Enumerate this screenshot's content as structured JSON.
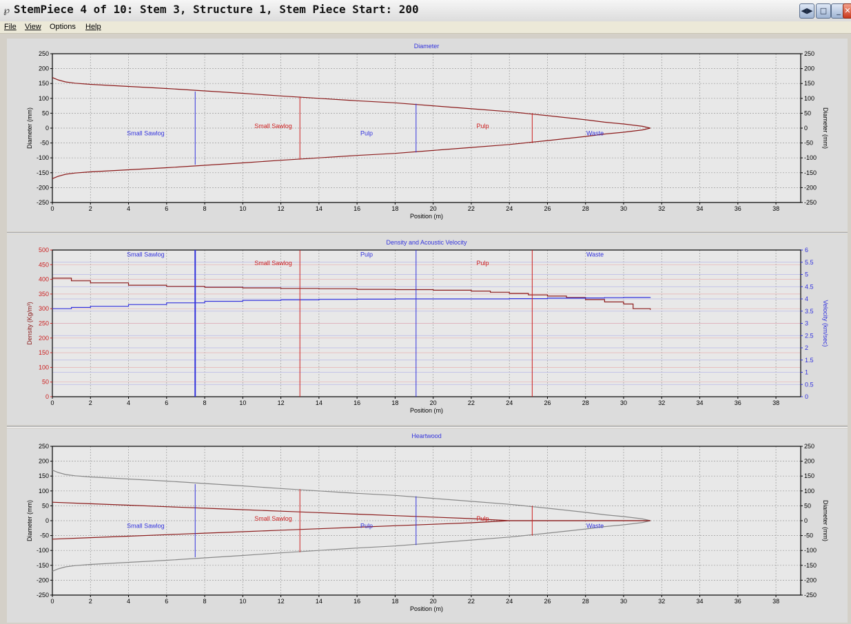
{
  "window": {
    "icon": "tree-icon",
    "title": "StemPiece 4 of 10: Stem 3, Structure 1, Stem Piece Start: 200",
    "buttons": [
      "prev-next-icon",
      "restore-icon",
      "minimize-icon",
      "maximize-icon",
      "close-icon"
    ]
  },
  "menu": {
    "file": "File",
    "view": "View",
    "options": "Options",
    "help": "Help"
  },
  "colors": {
    "red": "#cc2020",
    "dark_red": "#8b1a1a",
    "blue": "#3333dd",
    "gray_outline": "#888888",
    "panel_bg": "#dcdcdc",
    "plot_bg": "#e8e8e8"
  },
  "chart_data": [
    {
      "type": "line",
      "title": "Diameter",
      "xlabel": "Position (m)",
      "ylabel": "Diameter (mm)",
      "ylabel_right": "Diameter (mm)",
      "xlim": [
        0,
        39.3
      ],
      "ylim": [
        -250,
        250
      ],
      "x_ticks": [
        0,
        2,
        4,
        6,
        8,
        10,
        12,
        14,
        16,
        18,
        20,
        22,
        24,
        26,
        28,
        30,
        32,
        34,
        36,
        38
      ],
      "y_ticks": [
        250,
        200,
        150,
        100,
        50,
        0,
        -50,
        -100,
        -150,
        -200,
        -250
      ],
      "grid": true,
      "series": [
        {
          "color": "#8b1a1a",
          "x": [
            0,
            0.3,
            0.7,
            1.2,
            2,
            4,
            6,
            8,
            10,
            12,
            14,
            16,
            18,
            20,
            22,
            24,
            26,
            28,
            29,
            30,
            31,
            31.4
          ],
          "y": [
            170,
            162,
            155,
            151,
            147,
            140,
            133,
            125,
            117,
            108,
            100,
            92,
            85,
            75,
            65,
            55,
            42,
            28,
            20,
            14,
            6,
            0
          ],
          "mirrored": true
        }
      ],
      "cut_lines": [
        {
          "x": 7.5,
          "color": "blue",
          "height": 123
        },
        {
          "x": 13.0,
          "color": "red",
          "height": 106
        },
        {
          "x": 19.1,
          "color": "blue",
          "height": 82
        },
        {
          "x": 25.2,
          "color": "red",
          "height": 50
        }
      ],
      "segment_labels": [
        {
          "text": "Small Sawlog",
          "x": 4.9,
          "y": -17,
          "color": "blue"
        },
        {
          "text": "Small Sawlog",
          "x": 11.6,
          "y": 7,
          "color": "red"
        },
        {
          "text": "Pulp",
          "x": 16.5,
          "y": -17,
          "color": "blue"
        },
        {
          "text": "Pulp",
          "x": 22.6,
          "y": 7,
          "color": "red"
        },
        {
          "text": "Waste",
          "x": 28.5,
          "y": -17,
          "color": "blue"
        }
      ]
    },
    {
      "type": "line",
      "title": "Density and Acoustic Velocity",
      "xlabel": "Position (m)",
      "ylabel": "Density (Kg/m³)",
      "ylabel_right": "Velocity (km/sec)",
      "xlim": [
        0,
        39.3
      ],
      "ylim": [
        0,
        500
      ],
      "y2lim": [
        0,
        6
      ],
      "x_ticks": [
        0,
        2,
        4,
        6,
        8,
        10,
        12,
        14,
        16,
        18,
        20,
        22,
        24,
        26,
        28,
        30,
        32,
        34,
        36,
        38
      ],
      "y_ticks": [
        500,
        450,
        400,
        350,
        300,
        250,
        200,
        150,
        100,
        50,
        0
      ],
      "y2_ticks": [
        "6",
        "5.5",
        "5",
        "4.5",
        "4",
        "3.5",
        "3",
        "2.5",
        "2",
        "1.5",
        "1",
        "0.5",
        "0"
      ],
      "grid": true,
      "series": [
        {
          "color": "#8b1a1a",
          "step": true,
          "x": [
            0,
            1,
            2,
            4,
            6,
            8,
            10,
            12,
            14,
            16,
            18,
            20,
            22,
            23,
            24,
            25,
            26,
            27,
            28,
            29,
            30,
            30.5,
            31.4
          ],
          "y": [
            404,
            395,
            388,
            380,
            376,
            373,
            371,
            369,
            368,
            366,
            365,
            363,
            360,
            356,
            352,
            347,
            343,
            338,
            331,
            323,
            316,
            300,
            296
          ]
        },
        {
          "color": "#3333dd",
          "step": true,
          "axis": "y2",
          "x": [
            0,
            1,
            2,
            4,
            6,
            8,
            10,
            12,
            14,
            16,
            18,
            20,
            22,
            24,
            26,
            28,
            29,
            30,
            31.4
          ],
          "y": [
            3.6,
            3.65,
            3.7,
            3.77,
            3.84,
            3.9,
            3.94,
            3.96,
            3.98,
            3.99,
            4.0,
            4.0,
            4.0,
            4.01,
            4.03,
            4.04,
            4.05,
            4.06,
            4.07
          ]
        }
      ],
      "cut_lines": [
        {
          "x": 7.5,
          "color": "blue",
          "height": 500,
          "thick": true
        },
        {
          "x": 13.0,
          "color": "red",
          "height": 500
        },
        {
          "x": 19.1,
          "color": "blue",
          "height": 500
        },
        {
          "x": 25.2,
          "color": "red",
          "height": 500
        }
      ],
      "segment_labels": [
        {
          "text": "Small Sawlog",
          "x": 4.9,
          "y": 485,
          "color": "blue"
        },
        {
          "text": "Small Sawlog",
          "x": 11.6,
          "y": 455,
          "color": "red"
        },
        {
          "text": "Pulp",
          "x": 16.5,
          "y": 485,
          "color": "blue"
        },
        {
          "text": "Pulp",
          "x": 22.6,
          "y": 455,
          "color": "red"
        },
        {
          "text": "Waste",
          "x": 28.5,
          "y": 485,
          "color": "blue"
        }
      ]
    },
    {
      "type": "line",
      "title": "Heartwood",
      "xlabel": "Position (m)",
      "ylabel": "Diameter (mm)",
      "ylabel_right": "Diameter (mm)",
      "xlim": [
        0,
        39.3
      ],
      "ylim": [
        -250,
        250
      ],
      "x_ticks": [
        0,
        2,
        4,
        6,
        8,
        10,
        12,
        14,
        16,
        18,
        20,
        22,
        24,
        26,
        28,
        30,
        32,
        34,
        36,
        38
      ],
      "y_ticks": [
        250,
        200,
        150,
        100,
        50,
        0,
        -50,
        -100,
        -150,
        -200,
        -250
      ],
      "grid": true,
      "series": [
        {
          "color": "#888888",
          "x": [
            0,
            0.3,
            0.7,
            1.2,
            2,
            4,
            6,
            8,
            10,
            12,
            14,
            16,
            18,
            20,
            22,
            24,
            26,
            28,
            29,
            30,
            31,
            31.4
          ],
          "y": [
            170,
            162,
            155,
            151,
            147,
            140,
            133,
            125,
            117,
            108,
            100,
            92,
            85,
            75,
            65,
            55,
            42,
            28,
            20,
            14,
            6,
            0
          ],
          "mirrored": true
        },
        {
          "color": "#8b1a1a",
          "x": [
            0,
            2,
            4,
            6,
            8,
            10,
            12,
            14,
            16,
            18,
            20,
            22,
            24,
            31.4
          ],
          "y": [
            62,
            57,
            52,
            47,
            42,
            37,
            32,
            27,
            22,
            17,
            12,
            7,
            0,
            0
          ],
          "mirrored": true
        }
      ],
      "cut_lines": [
        {
          "x": 7.5,
          "color": "blue",
          "height": 123
        },
        {
          "x": 13.0,
          "color": "red",
          "height": 106
        },
        {
          "x": 19.1,
          "color": "blue",
          "height": 82
        },
        {
          "x": 25.2,
          "color": "red",
          "height": 50
        }
      ],
      "segment_labels": [
        {
          "text": "Small Sawlog",
          "x": 4.9,
          "y": -17,
          "color": "blue"
        },
        {
          "text": "Small Sawlog",
          "x": 11.6,
          "y": 7,
          "color": "red"
        },
        {
          "text": "Pulp",
          "x": 16.5,
          "y": -17,
          "color": "blue"
        },
        {
          "text": "Pulp",
          "x": 22.6,
          "y": 7,
          "color": "red"
        },
        {
          "text": "Waste",
          "x": 28.5,
          "y": -17,
          "color": "blue"
        }
      ]
    }
  ]
}
